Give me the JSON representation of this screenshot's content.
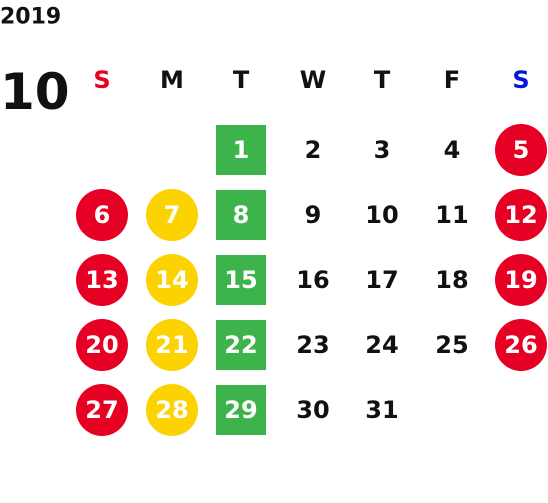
{
  "year": "2019",
  "month": "10",
  "weekdays": [
    {
      "label": "S",
      "color": "#e8001c"
    },
    {
      "label": "M",
      "color": "#111111"
    },
    {
      "label": "T",
      "color": "#111111"
    },
    {
      "label": "W",
      "color": "#111111"
    },
    {
      "label": "T",
      "color": "#111111"
    },
    {
      "label": "F",
      "color": "#111111"
    },
    {
      "label": "S",
      "color": "#0018d8"
    }
  ],
  "day_marks": [
    {
      "shape": "circle",
      "color": "#e60023"
    },
    {
      "shape": "circle",
      "color": "#fcd200"
    },
    {
      "shape": "square",
      "color": "#3cb44b"
    },
    null,
    null,
    null,
    {
      "shape": "circle",
      "color": "#e60023"
    }
  ],
  "weeks": [
    [
      null,
      null,
      1,
      2,
      3,
      4,
      5
    ],
    [
      6,
      7,
      8,
      9,
      10,
      11,
      12
    ],
    [
      13,
      14,
      15,
      16,
      17,
      18,
      19
    ],
    [
      20,
      21,
      22,
      23,
      24,
      25,
      26
    ],
    [
      27,
      28,
      29,
      30,
      31,
      null,
      null
    ]
  ]
}
